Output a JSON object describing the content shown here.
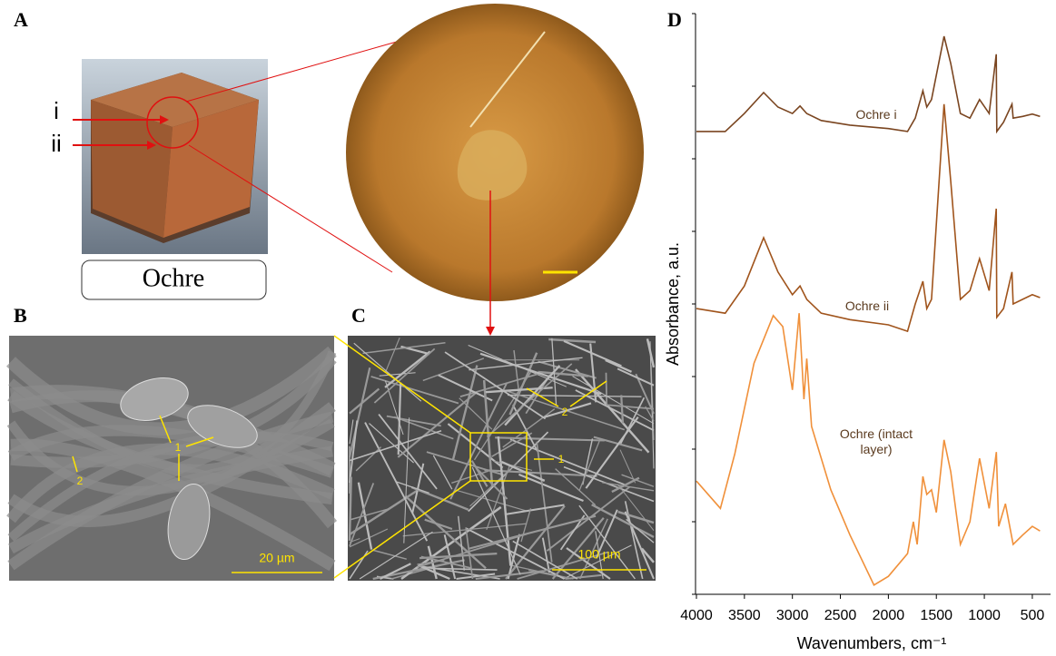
{
  "panels": {
    "A": {
      "label": "A",
      "markers": [
        "i",
        "ii"
      ],
      "caption": "Ochre"
    },
    "B": {
      "label": "B",
      "scale_bar": "20 µm",
      "arrow_labels": [
        "1",
        "2"
      ]
    },
    "C": {
      "label": "C",
      "scale_bar": "100 µm",
      "arrow_labels": [
        "1",
        "2"
      ]
    },
    "D": {
      "label": "D"
    }
  },
  "chart_data": {
    "type": "line",
    "x_label": "Wavenumbers, cm⁻¹",
    "y_label": "Absorbance, a.u.",
    "xlim": [
      4000,
      310
    ],
    "xticks": [
      4000,
      3500,
      3000,
      2500,
      2000,
      1500,
      1000,
      500
    ],
    "ylim": [
      0,
      10
    ],
    "series": [
      {
        "name": "Ochre i",
        "color": "#7a4520",
        "x": [
          4000,
          3700,
          3500,
          3300,
          3150,
          3000,
          2920,
          2850,
          2700,
          2400,
          2000,
          1800,
          1720,
          1640,
          1600,
          1550,
          1420,
          1350,
          1250,
          1150,
          1050,
          950,
          876,
          870,
          800,
          712,
          700,
          600,
          500,
          420
        ],
        "values": [
          7.97,
          7.97,
          8.28,
          8.64,
          8.39,
          8.28,
          8.41,
          8.28,
          8.16,
          8.08,
          8.02,
          7.97,
          8.2,
          8.67,
          8.39,
          8.52,
          9.61,
          9.14,
          8.28,
          8.2,
          8.52,
          8.28,
          9.3,
          7.97,
          8.13,
          8.44,
          8.2,
          8.23,
          8.27,
          8.23
        ]
      },
      {
        "name": "Ochre ii",
        "color": "#a0541c",
        "x": [
          4000,
          3700,
          3500,
          3300,
          3150,
          3000,
          2920,
          2850,
          2700,
          2400,
          2000,
          1800,
          1720,
          1640,
          1600,
          1550,
          1420,
          1350,
          1250,
          1150,
          1050,
          950,
          876,
          870,
          800,
          712,
          700,
          600,
          500,
          420
        ],
        "values": [
          4.92,
          4.84,
          5.31,
          6.14,
          5.55,
          5.16,
          5.31,
          5.08,
          4.84,
          4.73,
          4.64,
          4.53,
          5.0,
          5.39,
          4.92,
          5.08,
          8.44,
          7.11,
          5.08,
          5.23,
          5.78,
          5.23,
          6.64,
          4.77,
          4.92,
          5.55,
          5.0,
          5.08,
          5.16,
          5.11
        ]
      },
      {
        "name": "Ochre (intact layer)",
        "color": "#f0903a",
        "x": [
          4000,
          3750,
          3600,
          3400,
          3200,
          3100,
          3000,
          2930,
          2880,
          2850,
          2800,
          2600,
          2400,
          2150,
          2000,
          1800,
          1740,
          1700,
          1640,
          1600,
          1550,
          1500,
          1420,
          1350,
          1250,
          1150,
          1050,
          950,
          875,
          850,
          780,
          700,
          600,
          500,
          420
        ],
        "values": [
          1.95,
          1.48,
          2.42,
          3.98,
          4.8,
          4.61,
          3.52,
          4.84,
          3.36,
          4.06,
          2.89,
          1.8,
          1.02,
          0.16,
          0.31,
          0.7,
          1.25,
          0.86,
          2.03,
          1.72,
          1.8,
          1.41,
          2.66,
          2.11,
          0.86,
          1.25,
          2.34,
          1.48,
          2.45,
          1.17,
          1.56,
          0.86,
          1.02,
          1.17,
          1.09
        ]
      }
    ]
  }
}
